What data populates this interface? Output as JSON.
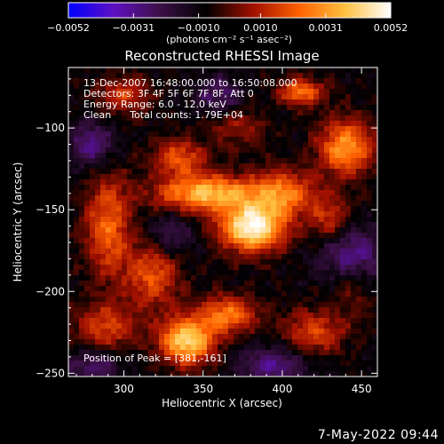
{
  "timestamp": "7-May-2022 09:44",
  "chart_data": {
    "type": "heatmap",
    "title": "Reconstructed RHESSI Image",
    "xlabel": "Heliocentric X (arcsec)",
    "ylabel": "Heliocentric Y (arcsec)",
    "xlim": [
      265,
      460
    ],
    "ylim": [
      -252,
      -63
    ],
    "x_ticks": [
      300,
      350,
      400,
      450
    ],
    "y_ticks": [
      -100,
      -150,
      -200,
      -250
    ],
    "x_tick_labels": [
      "300",
      "350",
      "400",
      "450"
    ],
    "y_tick_labels": [
      "−100",
      "−150",
      "−200",
      "−250"
    ],
    "colorbar": {
      "min": -0.0052,
      "max": 0.0052,
      "ticks": [
        -0.0052,
        -0.0031,
        -0.001,
        0.001,
        0.0031,
        0.0052
      ],
      "tick_labels": [
        "−0.0052",
        "−0.0031",
        "−0.0010",
        "0.0010",
        "0.0031",
        "0.0052"
      ],
      "label": "(photons cm⁻² s⁻¹ asec⁻²)",
      "colors": [
        "#0000ff",
        "#6010c0",
        "#3c1046",
        "#000000",
        "#a01000",
        "#ff6000",
        "#ffc040",
        "#ffffff"
      ]
    },
    "annotations": [
      "13-Dec-2007 16:48:00.000 to 16:50:08.000",
      "Detectors: 3F 4F 5F 6F 7F 8F, Att 0",
      "Energy Range: 6.0 - 12.0 keV",
      "Clean      Total counts: 1.79E+04"
    ],
    "peak_label": "Position of Peak = [381,-161]",
    "peak": [
      381,
      -161
    ],
    "sources": [
      {
        "x": 381,
        "y": -161,
        "sx": 14,
        "sy": 10,
        "amp": 1.0
      },
      {
        "x": 352,
        "y": -140,
        "sx": 22,
        "sy": 8,
        "amp": 0.75
      },
      {
        "x": 335,
        "y": -118,
        "sx": 12,
        "sy": 8,
        "amp": 0.45
      },
      {
        "x": 400,
        "y": -140,
        "sx": 14,
        "sy": 10,
        "amp": 0.55
      },
      {
        "x": 440,
        "y": -112,
        "sx": 12,
        "sy": 12,
        "amp": 0.65
      },
      {
        "x": 430,
        "y": -155,
        "sx": 10,
        "sy": 10,
        "amp": 0.35
      },
      {
        "x": 412,
        "y": -78,
        "sx": 10,
        "sy": 6,
        "amp": 0.55
      },
      {
        "x": 340,
        "y": -230,
        "sx": 12,
        "sy": 10,
        "amp": 0.85
      },
      {
        "x": 366,
        "y": -214,
        "sx": 12,
        "sy": 8,
        "amp": 0.55
      },
      {
        "x": 318,
        "y": -190,
        "sx": 12,
        "sy": 14,
        "amp": 0.45
      },
      {
        "x": 290,
        "y": -160,
        "sx": 10,
        "sy": 22,
        "amp": 0.5
      },
      {
        "x": 288,
        "y": -222,
        "sx": 14,
        "sy": 10,
        "amp": 0.4
      },
      {
        "x": 300,
        "y": -80,
        "sx": 12,
        "sy": 8,
        "amp": 0.35
      },
      {
        "x": 420,
        "y": -225,
        "sx": 14,
        "sy": 10,
        "amp": 0.4
      },
      {
        "x": 445,
        "y": -195,
        "sx": 10,
        "sy": 12,
        "amp": 0.3
      },
      {
        "x": 372,
        "y": -100,
        "sx": 12,
        "sy": 8,
        "amp": 0.25
      },
      {
        "x": 280,
        "y": -110,
        "sx": 10,
        "sy": 10,
        "amp": -0.35
      },
      {
        "x": 445,
        "y": -180,
        "sx": 14,
        "sy": 14,
        "amp": -0.45
      },
      {
        "x": 360,
        "y": -80,
        "sx": 10,
        "sy": 8,
        "amp": -0.3
      },
      {
        "x": 395,
        "y": -245,
        "sx": 16,
        "sy": 8,
        "amp": -0.35
      },
      {
        "x": 280,
        "y": -245,
        "sx": 12,
        "sy": 8,
        "amp": -0.3
      },
      {
        "x": 330,
        "y": -165,
        "sx": 10,
        "sy": 10,
        "amp": -0.25
      }
    ]
  }
}
